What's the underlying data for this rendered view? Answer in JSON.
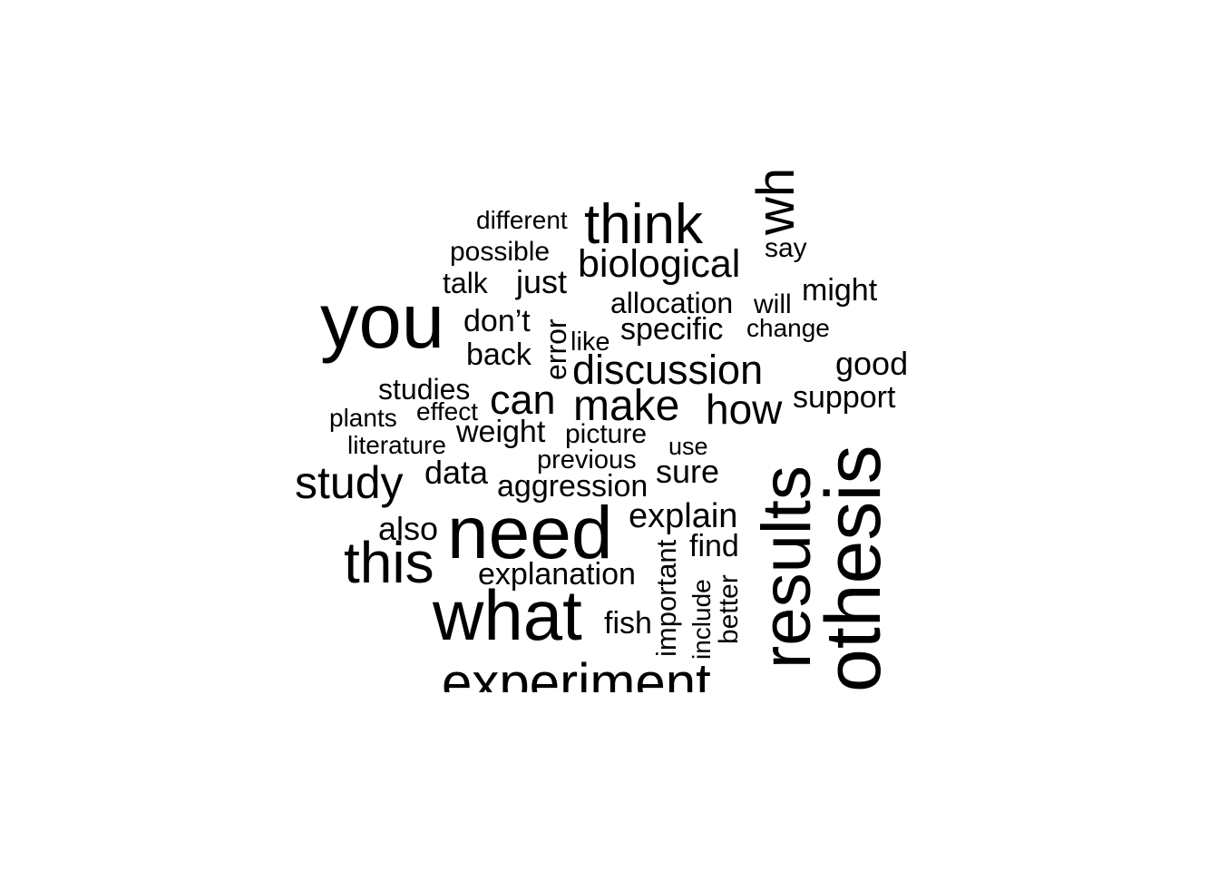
{
  "word_cloud": {
    "text_color": "#000000",
    "background": "#ffffff",
    "words": {
      "different": "different",
      "think": "think",
      "wh": "wh",
      "possible": "possible",
      "biological": "biological",
      "say": "say",
      "talk": "talk",
      "just": "just",
      "you": "you",
      "allocation": "allocation",
      "will": "will",
      "might": "might",
      "dont": "don’t",
      "error": "error",
      "change": "change",
      "like": "like",
      "specific": "specific",
      "back": "back",
      "good": "good",
      "discussion": "discussion",
      "studies": "studies",
      "can": "can",
      "make": "make",
      "support": "support",
      "effect": "effect",
      "how": "how",
      "plants": "plants",
      "weight": "weight",
      "picture": "picture",
      "literature": "literature",
      "use": "use",
      "previous": "previous",
      "results": "results",
      "othesis": "othesis",
      "study": "study",
      "data": "data",
      "sure": "sure",
      "aggression": "aggression",
      "explain": "explain",
      "also": "also",
      "need": "need",
      "find": "find",
      "this": "this",
      "important": "important",
      "explanation": "explanation",
      "include": "include",
      "better": "better",
      "what": "what",
      "fish": "fish",
      "experiment": "experiment"
    }
  }
}
